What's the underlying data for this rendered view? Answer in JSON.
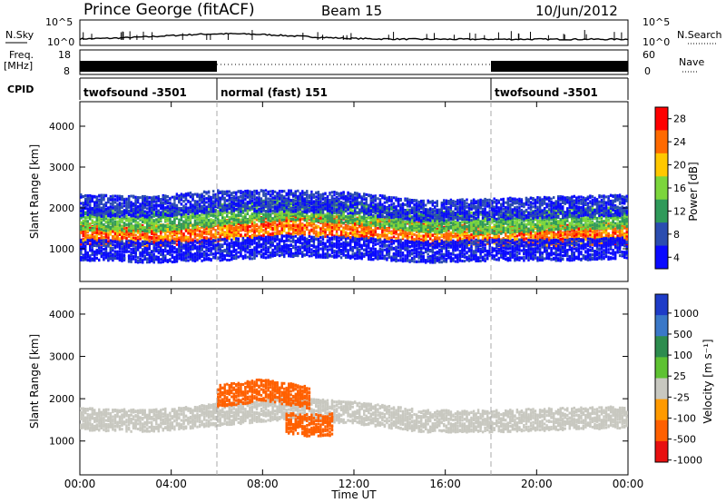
{
  "header": {
    "station": "Prince George (fitACF)",
    "beam": "Beam 15",
    "date": "10/Jun/2012"
  },
  "side_labels": {
    "nsky": "N.Sky",
    "nsearch": "N.Search",
    "freq_line1": "Freq.",
    "freq_line2": "[MHz]",
    "nave": "Nave",
    "cpid": "CPID",
    "noise_ticks_left": [
      "10^5",
      "10^0"
    ],
    "noise_ticks_right": [
      "10^5",
      "10^0"
    ],
    "freq_ticks": [
      "18",
      "8"
    ],
    "nave_ticks": [
      "60",
      "0"
    ]
  },
  "cpid_segments": [
    {
      "label": "twofsound -3501",
      "start_hour": 0,
      "end_hour": 6
    },
    {
      "label": "normal (fast) 151",
      "start_hour": 6,
      "end_hour": 18
    },
    {
      "label": "twofsound -3501",
      "start_hour": 18,
      "end_hour": 24
    }
  ],
  "x_axis": {
    "label": "Time UT",
    "tick_labels": [
      "00:00",
      "04:00",
      "08:00",
      "12:00",
      "16:00",
      "20:00",
      "00:00"
    ]
  },
  "chart_data": [
    {
      "type": "heatmap",
      "name": "power",
      "ylabel": "Slant Range [km]",
      "ylim": [
        200,
        4600
      ],
      "yticks": [
        "1000",
        "2000",
        "3000",
        "4000"
      ],
      "colorbar": {
        "label": "Power [dB]",
        "ticks": [
          "28",
          "24",
          "20",
          "16",
          "12",
          "8",
          "4"
        ],
        "colors": [
          "#ff0000",
          "#ff6a00",
          "#ffc800",
          "#7cd63c",
          "#2f9a5a",
          "#2b4db0",
          "#0a0aff"
        ]
      },
      "bands": [
        {
          "x": [
            0,
            3,
            6,
            9,
            12,
            15,
            18,
            21,
            24
          ],
          "y": [
            1400,
            1350,
            1450,
            1650,
            1550,
            1400,
            1350,
            1350,
            1400
          ],
          "level": 24
        },
        {
          "x": [
            0,
            3,
            6,
            9,
            12,
            15,
            18,
            21,
            24
          ],
          "y": [
            1750,
            1700,
            1850,
            2000,
            1900,
            1700,
            1650,
            1750,
            1800
          ],
          "level": 14
        },
        {
          "x": [
            0,
            3,
            6,
            9,
            12,
            15,
            18,
            21,
            24
          ],
          "y": [
            2100,
            2050,
            2200,
            2200,
            2150,
            1950,
            2000,
            2050,
            2100
          ],
          "level": 6
        },
        {
          "x": [
            0,
            3,
            6,
            9,
            12,
            15,
            18,
            21,
            24
          ],
          "y": [
            1000,
            950,
            1000,
            1100,
            1050,
            950,
            1000,
            1000,
            1050
          ],
          "level": 4
        }
      ]
    },
    {
      "type": "heatmap",
      "name": "velocity",
      "ylabel": "Slant Range [km]",
      "ylim": [
        200,
        4600
      ],
      "yticks": [
        "1000",
        "2000",
        "3000",
        "4000"
      ],
      "colorbar": {
        "label": "Velocity [m s⁻¹]",
        "ticks": [
          "1000",
          "500",
          "100",
          "25",
          "-25",
          "-100",
          "-500",
          "-1000"
        ],
        "colors": [
          "#1e3cc8",
          "#3a78c8",
          "#2d8c4e",
          "#5ec232",
          "#c8c8c0",
          "#ff9a00",
          "#ff6000",
          "#e81010"
        ]
      },
      "bands": [
        {
          "x": [
            0,
            3,
            6,
            9,
            12,
            15,
            18,
            21,
            24
          ],
          "y": [
            1550,
            1500,
            1650,
            1800,
            1700,
            1500,
            1500,
            1550,
            1600
          ],
          "level": 0
        },
        {
          "x": [
            6,
            7,
            8,
            9,
            10
          ],
          "y": [
            2100,
            2150,
            2250,
            2150,
            2050
          ],
          "level": -200
        },
        {
          "x": [
            9,
            10,
            11
          ],
          "y": [
            1450,
            1400,
            1420
          ],
          "level": -150
        }
      ]
    }
  ]
}
